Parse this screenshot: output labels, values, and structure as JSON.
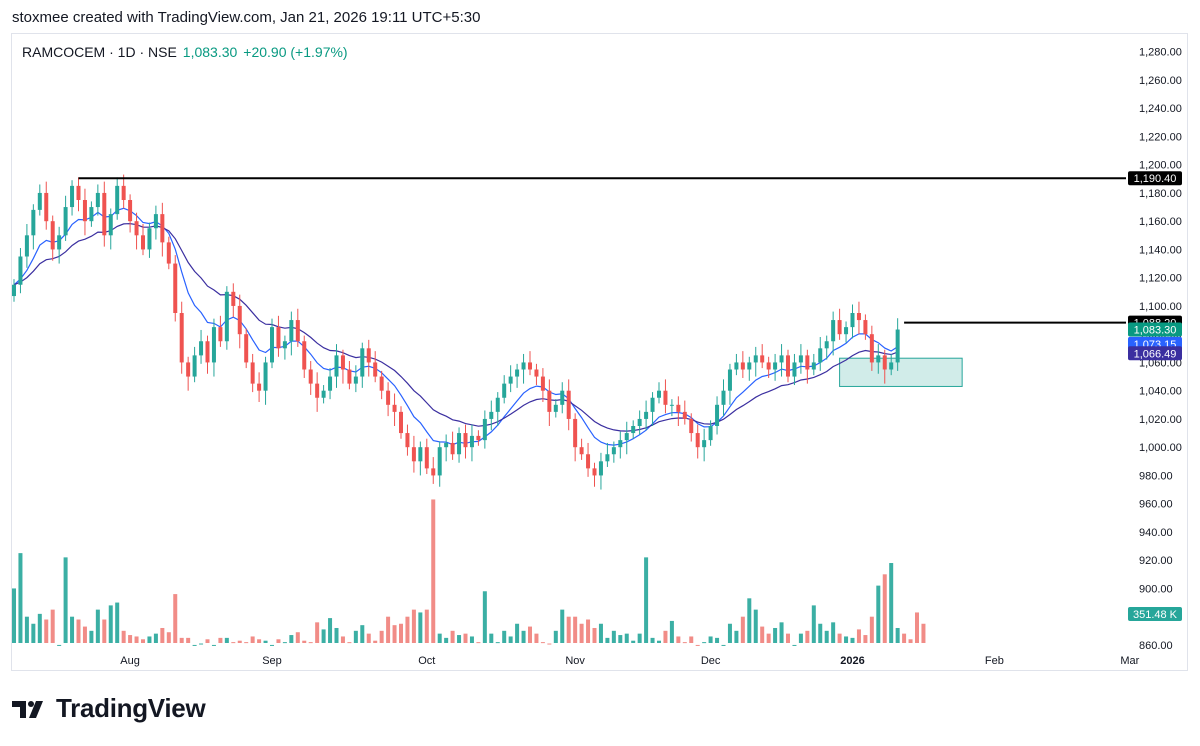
{
  "header": {
    "text": "stoxmee created with TradingView.com, Jan 21, 2026 19:11 UTC+5:30"
  },
  "legend": {
    "symbol": "RAMCOCEM · 1D · NSE",
    "price": "1,083.30",
    "change": "+20.90 (+1.97%)"
  },
  "footer": {
    "brand": "TradingView",
    "logo_icon": "tradingview-logo-icon"
  },
  "colors": {
    "up": "#26a69a",
    "down": "#ef5350",
    "vol_up": "#26a69a",
    "vol_down": "#ef7f7a",
    "ema_fast": "#2962ff",
    "ema_slow": "#3b2fa0",
    "level": "#000000",
    "zone": "#b2dfdb"
  },
  "chart_data": {
    "type": "candlestick",
    "price_axis": {
      "ylim": [
        850,
        1290
      ],
      "ticks": [
        "1,280.00",
        "1,260.00",
        "1,240.00",
        "1,220.00",
        "1,200.00",
        "1,180.00",
        "1,160.00",
        "1,140.00",
        "1,120.00",
        "1,100.00",
        "1,080.00",
        "1,060.00",
        "1,040.00",
        "1,020.00",
        "1,000.00",
        "980.00",
        "960.00",
        "940.00",
        "920.00",
        "900.00",
        "880.00",
        "860.00"
      ],
      "tick_values": [
        1280,
        1260,
        1240,
        1220,
        1200,
        1180,
        1160,
        1140,
        1120,
        1100,
        1080,
        1060,
        1040,
        1020,
        1000,
        980,
        960,
        940,
        920,
        900,
        880,
        860
      ]
    },
    "time_axis": {
      "labels": [
        "Aug",
        "Sep",
        "Oct",
        "Nov",
        "Dec",
        "2026",
        "Feb",
        "Mar"
      ],
      "label_index": [
        18,
        40,
        64,
        87,
        108,
        130,
        152,
        173
      ]
    },
    "horizontal_levels": [
      {
        "price": 1190.4,
        "label": "1,190.40",
        "from_index": 10
      },
      {
        "price": 1088.2,
        "label": "1,088.20",
        "from_index": 138
      }
    ],
    "price_labels": [
      {
        "price": 1083.3,
        "label": "1,083.30",
        "kind": "last"
      },
      {
        "price": 1073.15,
        "label": "1,073.15",
        "kind": "ema_fast"
      },
      {
        "price": 1066.49,
        "label": "1,066.49",
        "kind": "ema_slow"
      }
    ],
    "volume_label": "351.48 K",
    "zone": {
      "from_index": 128,
      "to_index": 147,
      "low": 1043,
      "high": 1063
    },
    "closes": [
      1115,
      1135,
      1150,
      1168,
      1180,
      1160,
      1140,
      1150,
      1170,
      1185,
      1175,
      1160,
      1170,
      1180,
      1150,
      1165,
      1185,
      1175,
      1160,
      1150,
      1140,
      1155,
      1165,
      1145,
      1130,
      1095,
      1060,
      1050,
      1065,
      1075,
      1060,
      1085,
      1075,
      1110,
      1100,
      1080,
      1060,
      1045,
      1040,
      1060,
      1085,
      1070,
      1075,
      1090,
      1075,
      1055,
      1045,
      1035,
      1040,
      1050,
      1065,
      1055,
      1045,
      1050,
      1070,
      1060,
      1050,
      1040,
      1030,
      1025,
      1010,
      1000,
      990,
      1000,
      985,
      980,
      1000,
      1003,
      995,
      1010,
      1000,
      1008,
      1005,
      1020,
      1025,
      1035,
      1045,
      1050,
      1055,
      1060,
      1055,
      1050,
      1040,
      1025,
      1030,
      1040,
      1020,
      1000,
      995,
      985,
      980,
      990,
      995,
      1000,
      1005,
      1010,
      1015,
      1020,
      1025,
      1035,
      1040,
      1030,
      1030,
      1025,
      1020,
      1010,
      1000,
      1005,
      1015,
      1030,
      1040,
      1055,
      1060,
      1055,
      1060,
      1065,
      1060,
      1055,
      1060,
      1065,
      1050,
      1060,
      1065,
      1055,
      1060,
      1070,
      1075,
      1090,
      1080,
      1085,
      1095,
      1090,
      1080,
      1060,
      1065,
      1055,
      1060,
      1083.3
    ],
    "volumes": [
      900,
      925,
      880,
      875,
      882,
      878,
      885,
      860,
      922,
      880,
      878,
      873,
      870,
      885,
      878,
      888,
      890,
      870,
      867,
      866,
      864,
      866,
      868,
      872,
      869,
      896,
      865,
      865,
      860,
      861,
      864,
      860,
      865,
      865,
      862,
      863,
      862,
      866,
      864,
      863,
      860,
      864,
      862,
      867,
      869,
      863,
      862,
      876,
      871,
      879,
      872,
      866,
      862,
      870,
      874,
      868,
      863,
      870,
      880,
      874,
      875,
      880,
      885,
      883,
      885,
      963,
      868,
      865,
      870,
      867,
      868,
      866,
      862,
      898,
      868,
      862,
      870,
      866,
      875,
      870,
      873,
      868,
      862,
      861,
      870,
      885,
      880,
      880,
      875,
      878,
      872,
      875,
      865,
      870,
      867,
      868,
      863,
      868,
      922,
      865,
      863,
      870,
      877,
      866,
      862,
      866,
      860,
      862,
      866,
      865,
      860,
      875,
      870,
      880,
      893,
      885,
      873,
      868,
      872,
      876,
      868,
      860,
      868,
      870,
      888,
      875,
      870,
      876,
      868,
      866,
      865,
      871,
      867,
      880,
      902,
      910,
      918,
      872,
      868,
      864,
      883,
      875
    ]
  }
}
